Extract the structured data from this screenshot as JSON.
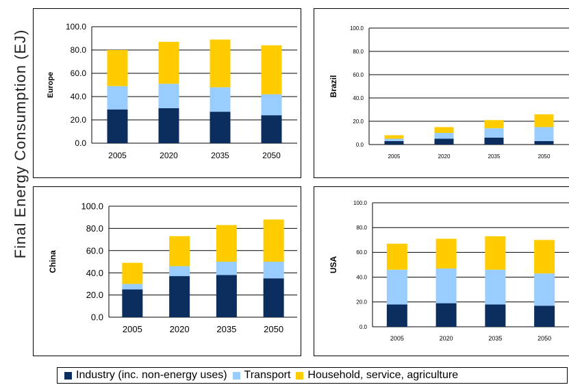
{
  "figure": {
    "ylabel": "Final Energy Consumption (EJ)"
  },
  "colors": {
    "industry": "#0b2e5e",
    "transport": "#99ccff",
    "household": "#ffcc00",
    "grid": "#000000"
  },
  "legend": {
    "items": [
      {
        "label": "Industry (inc. non-energy uses)",
        "color": "#0b2e5e"
      },
      {
        "label": "Transport",
        "color": "#99ccff"
      },
      {
        "label": "Household, service, agriculture",
        "color": "#ffcc00"
      }
    ]
  },
  "chart_data": [
    {
      "type": "bar",
      "stacked": true,
      "title": "",
      "ylabel": "Europe",
      "xlabel": "",
      "categories": [
        "2005",
        "2020",
        "2035",
        "2050"
      ],
      "ylim": [
        0,
        100
      ],
      "yticks": [
        "0.0",
        "20.0",
        "40.0",
        "60.0",
        "80.0",
        "100.0"
      ],
      "grid": true,
      "series": [
        {
          "name": "Industry (inc. non-energy uses)",
          "values": [
            29,
            30,
            27,
            24
          ]
        },
        {
          "name": "Transport",
          "values": [
            20,
            21,
            21,
            18
          ]
        },
        {
          "name": "Household, service, agriculture",
          "values": [
            31,
            36,
            41,
            42
          ]
        }
      ]
    },
    {
      "type": "bar",
      "stacked": true,
      "title": "",
      "ylabel": "Brazil",
      "xlabel": "",
      "categories": [
        "2005",
        "2020",
        "2035",
        "2050"
      ],
      "ylim": [
        0,
        100
      ],
      "yticks": [
        "0.0",
        "20.0",
        "40.0",
        "60.0",
        "80.0",
        "100.0"
      ],
      "grid": true,
      "series": [
        {
          "name": "Industry (inc. non-energy uses)",
          "values": [
            3,
            5,
            6,
            3
          ]
        },
        {
          "name": "Transport",
          "values": [
            2,
            5,
            8,
            12
          ]
        },
        {
          "name": "Household, service, agriculture",
          "values": [
            3,
            5,
            7,
            11
          ]
        }
      ]
    },
    {
      "type": "bar",
      "stacked": true,
      "title": "",
      "ylabel": "China",
      "xlabel": "",
      "categories": [
        "2005",
        "2020",
        "2035",
        "2050"
      ],
      "ylim": [
        0,
        100
      ],
      "yticks": [
        "0.0",
        "20.0",
        "40.0",
        "60.0",
        "80.0",
        "100.0"
      ],
      "grid": true,
      "series": [
        {
          "name": "Industry (inc. non-energy uses)",
          "values": [
            25,
            37,
            38,
            35
          ]
        },
        {
          "name": "Transport",
          "values": [
            5,
            9,
            12,
            15
          ]
        },
        {
          "name": "Household, service, agriculture",
          "values": [
            19,
            27,
            33,
            38
          ]
        }
      ]
    },
    {
      "type": "bar",
      "stacked": true,
      "title": "",
      "ylabel": "USA",
      "xlabel": "",
      "categories": [
        "2005",
        "2020",
        "2035",
        "2050"
      ],
      "ylim": [
        0,
        100
      ],
      "yticks": [
        "0.0",
        "20.0",
        "40.0",
        "60.0",
        "80.0",
        "100.0"
      ],
      "grid": true,
      "series": [
        {
          "name": "Industry (inc. non-energy uses)",
          "values": [
            18,
            19,
            18,
            17
          ]
        },
        {
          "name": "Transport",
          "values": [
            28,
            28,
            28,
            26
          ]
        },
        {
          "name": "Household, service, agriculture",
          "values": [
            21,
            24,
            27,
            27
          ]
        }
      ]
    }
  ]
}
